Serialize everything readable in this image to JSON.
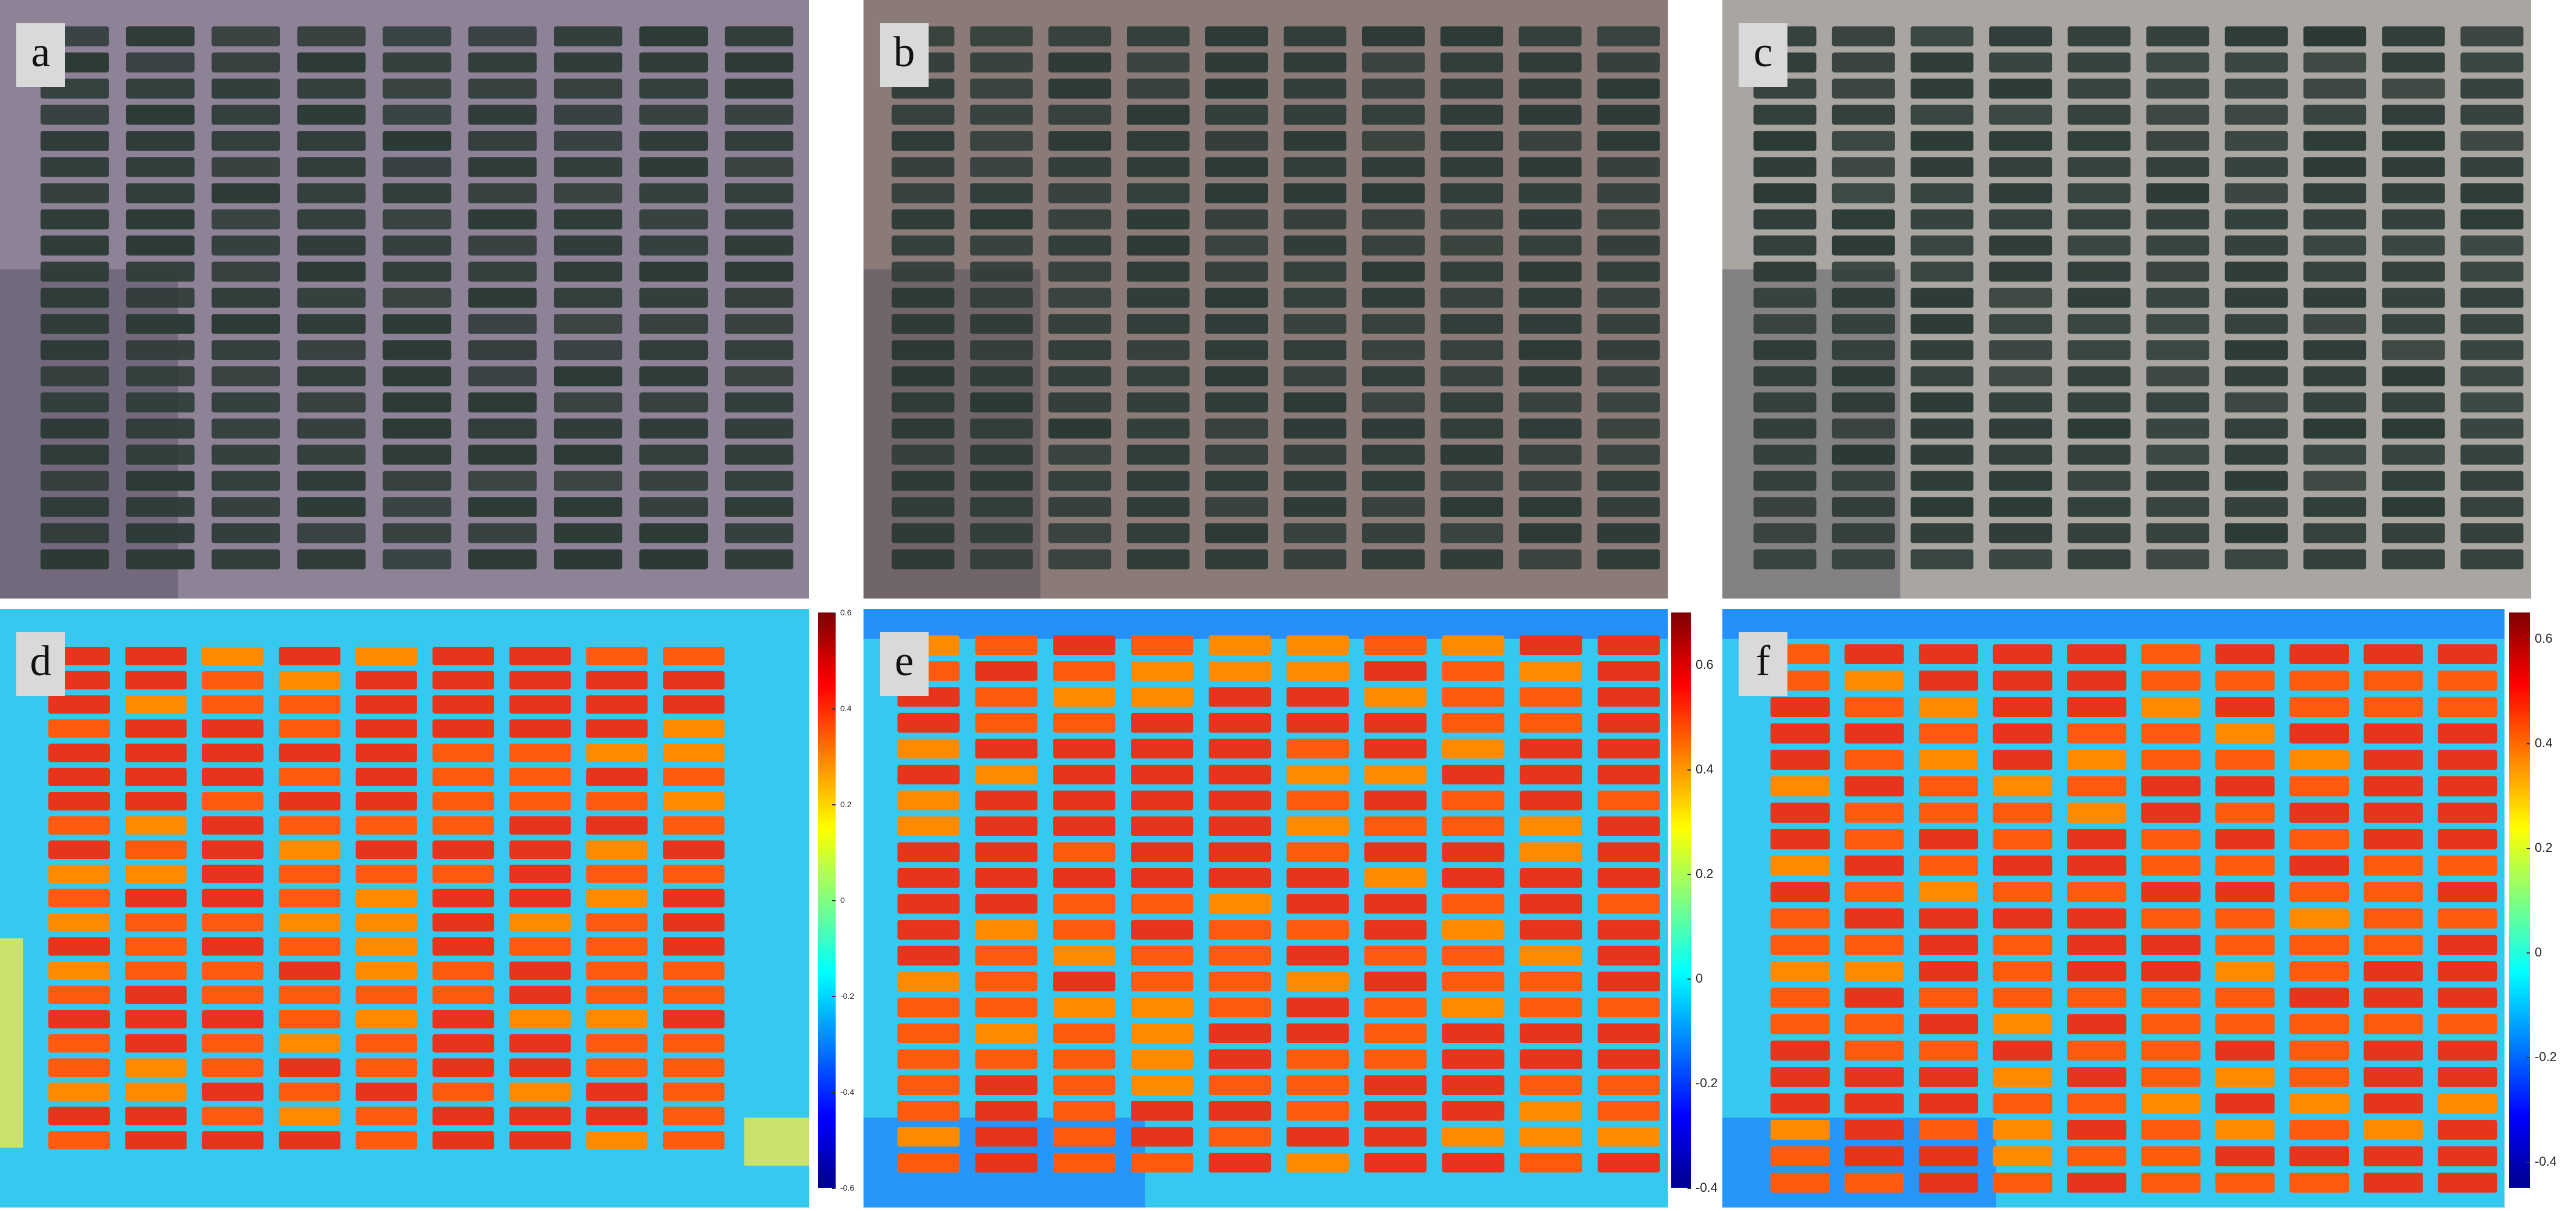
{
  "figure": {
    "panels": [
      {
        "id": "a",
        "label": "a",
        "kind": "rgb",
        "cols": 9,
        "rows": 21,
        "tint": "#6d6d8a"
      },
      {
        "id": "b",
        "label": "b",
        "kind": "rgb",
        "cols": 10,
        "rows": 21,
        "tint": "#7a7070"
      },
      {
        "id": "c",
        "label": "c",
        "kind": "rgb",
        "cols": 10,
        "rows": 21,
        "tint": "#8c8a8a"
      },
      {
        "id": "d",
        "label": "d",
        "kind": "index",
        "cols": 9,
        "rows": 21,
        "colorbar": {
          "range": [
            -0.6,
            0.6
          ],
          "ticks": [
            "0.6",
            "0.4",
            "0.2",
            "0",
            "-0.2",
            "-0.4",
            "-0.6"
          ]
        }
      },
      {
        "id": "e",
        "label": "e",
        "kind": "index",
        "cols": 10,
        "rows": 21,
        "colorbar": {
          "range": [
            -0.4,
            0.7
          ],
          "ticks": [
            "0.6",
            "0.4",
            "0.2",
            "0",
            "-0.2",
            "-0.4"
          ]
        }
      },
      {
        "id": "f",
        "label": "f",
        "kind": "index",
        "cols": 10,
        "rows": 21,
        "colorbar": {
          "range": [
            -0.45,
            0.65
          ],
          "ticks": [
            "0.6",
            "0.4",
            "0.2",
            "0",
            "-0.2",
            "-0.4"
          ]
        }
      }
    ],
    "colors": {
      "plot_dark": "#2c3a36",
      "soil_a": "#8e8296",
      "soil_b": "#8a7b78",
      "soil_c": "#a9a6a1",
      "index_high": "#e8341c",
      "index_mid": "#ff8a00",
      "index_low_bg": "#35c9f0",
      "index_bg_deep": "#1a6bff"
    }
  }
}
